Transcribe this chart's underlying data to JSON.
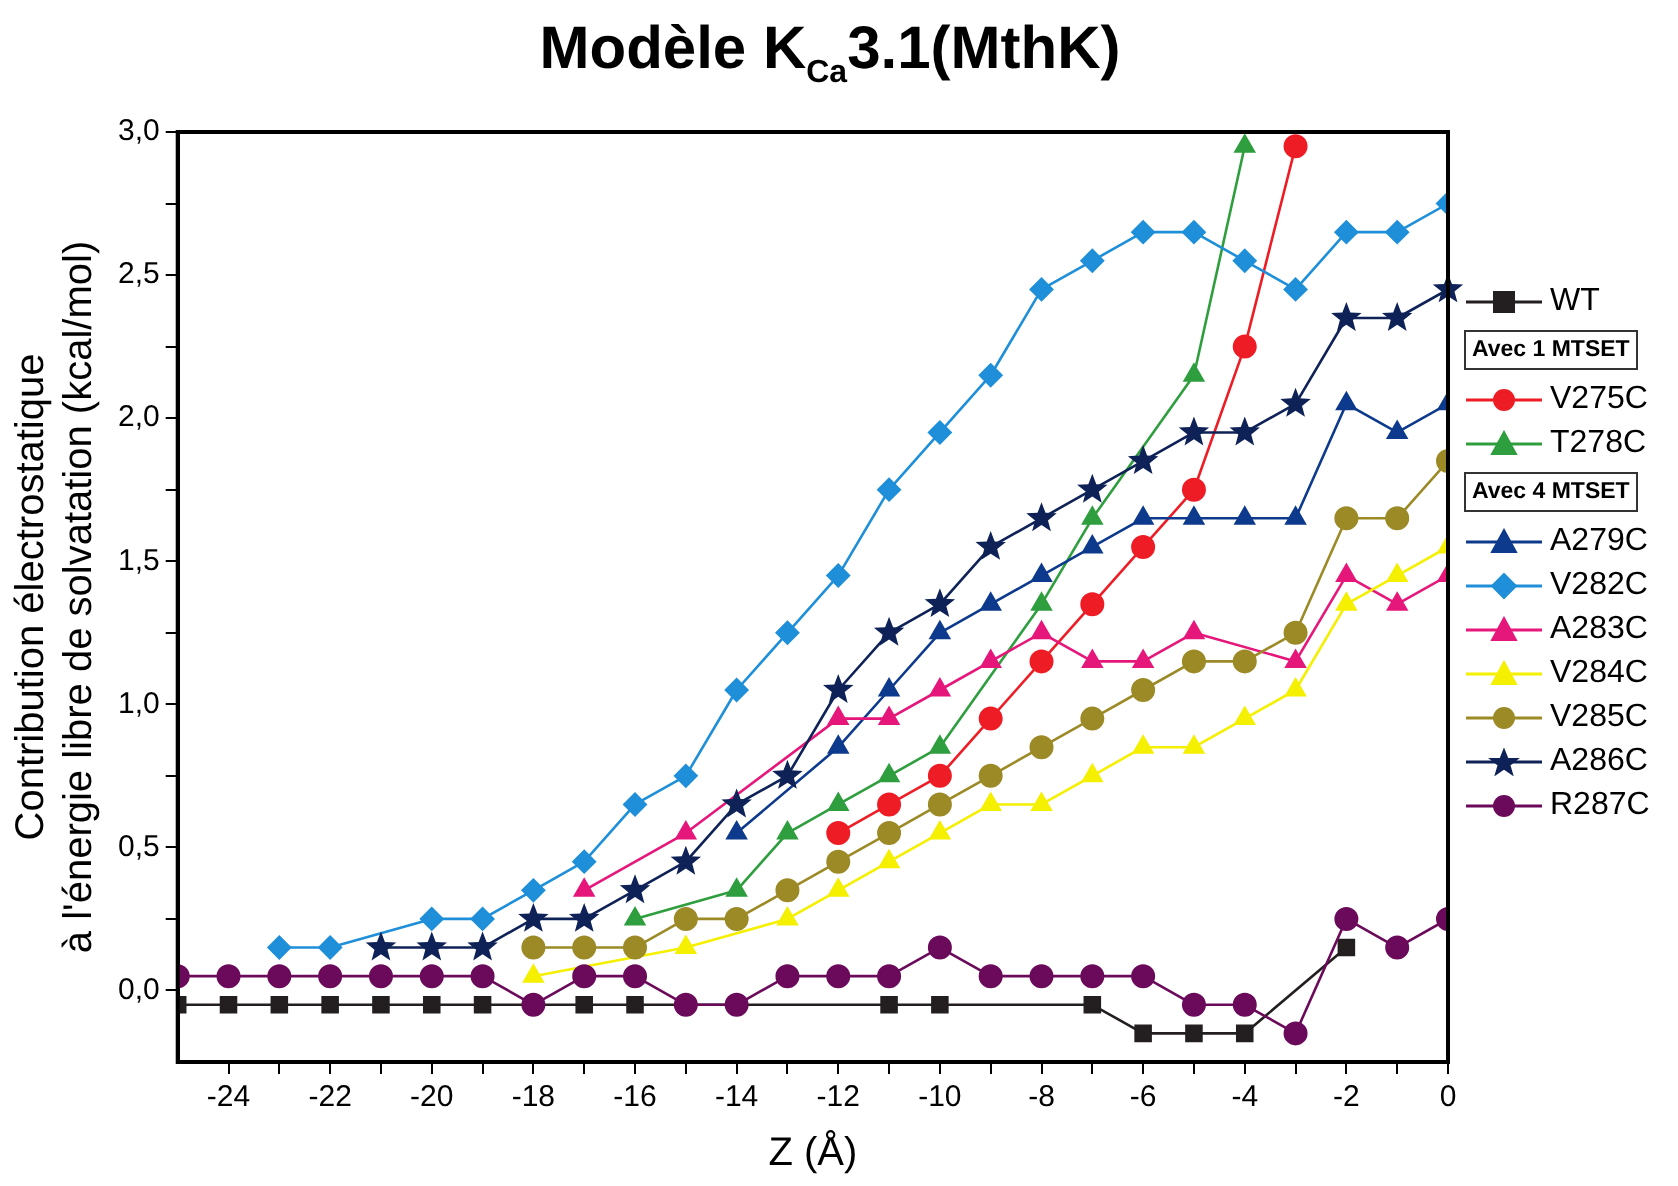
{
  "chart_data": {
    "type": "line",
    "title": "Modèle K$_{Ca}$3.1(MthK)",
    "xlabel": "Z (Å)",
    "ylabel": "Contribution électrostatique\nà l'énergie libre de solvatation (kcal/mol)",
    "x": [
      -25,
      -24,
      -23,
      -22,
      -21,
      -20,
      -19,
      -18,
      -17,
      -16,
      -15,
      -14,
      -13,
      -12,
      -11,
      -10,
      -9,
      -8,
      -7,
      -6,
      -5,
      -4,
      -3,
      -2,
      -1,
      0
    ],
    "series": [
      {
        "name": "WT",
        "color": "#231f20",
        "marker": "square",
        "values": [
          -0.05,
          -0.05,
          -0.05,
          -0.05,
          -0.05,
          -0.05,
          -0.05,
          null,
          -0.05,
          -0.05,
          null,
          null,
          null,
          null,
          -0.05,
          -0.05,
          null,
          null,
          -0.05,
          -0.15,
          -0.15,
          -0.15,
          null,
          0.15,
          null,
          null
        ]
      },
      {
        "name": "V275C",
        "color": "#ee1c25",
        "marker": "circle",
        "values": [
          null,
          null,
          null,
          null,
          null,
          null,
          null,
          null,
          null,
          null,
          null,
          null,
          null,
          0.55,
          0.65,
          0.75,
          0.95,
          1.15,
          1.35,
          1.55,
          1.75,
          2.25,
          2.95,
          null,
          null,
          null
        ]
      },
      {
        "name": "T278C",
        "color": "#2e9e3e",
        "marker": "triangle",
        "values": [
          null,
          null,
          null,
          null,
          null,
          null,
          null,
          null,
          null,
          0.25,
          null,
          0.35,
          0.55,
          0.65,
          0.75,
          0.85,
          null,
          1.35,
          1.65,
          null,
          2.15,
          2.95,
          null,
          null,
          null,
          null
        ]
      },
      {
        "name": "A279C",
        "color": "#0d3a8c",
        "marker": "triangle",
        "values": [
          null,
          null,
          null,
          null,
          null,
          null,
          null,
          null,
          null,
          null,
          null,
          0.55,
          null,
          0.85,
          1.05,
          1.25,
          1.35,
          1.45,
          1.55,
          1.65,
          1.65,
          1.65,
          1.65,
          2.05,
          1.95,
          2.05
        ]
      },
      {
        "name": "V282C",
        "color": "#1e8fd8",
        "marker": "diamond",
        "values": [
          null,
          null,
          0.15,
          0.15,
          null,
          0.25,
          0.25,
          0.35,
          0.45,
          0.65,
          0.75,
          1.05,
          1.25,
          1.45,
          1.75,
          1.95,
          2.15,
          2.45,
          2.55,
          2.65,
          2.65,
          2.55,
          2.45,
          2.65,
          2.65,
          2.75
        ]
      },
      {
        "name": "A283C",
        "color": "#e6177a",
        "marker": "triangle",
        "values": [
          null,
          null,
          null,
          null,
          null,
          null,
          null,
          null,
          0.35,
          null,
          0.55,
          null,
          null,
          0.95,
          0.95,
          1.05,
          1.15,
          1.25,
          1.15,
          1.15,
          1.25,
          null,
          1.15,
          1.45,
          1.35,
          1.45
        ]
      },
      {
        "name": "V284C",
        "color": "#f5ef00",
        "marker": "triangle",
        "values": [
          null,
          null,
          null,
          null,
          null,
          null,
          null,
          0.05,
          null,
          null,
          0.15,
          null,
          0.25,
          0.35,
          0.45,
          0.55,
          0.65,
          0.65,
          0.75,
          0.85,
          0.85,
          0.95,
          1.05,
          1.35,
          1.45,
          1.55
        ]
      },
      {
        "name": "V285C",
        "color": "#9b8a26",
        "marker": "circle",
        "values": [
          null,
          null,
          null,
          null,
          null,
          null,
          null,
          0.15,
          0.15,
          0.15,
          0.25,
          0.25,
          0.35,
          0.45,
          0.55,
          0.65,
          0.75,
          0.85,
          0.95,
          1.05,
          1.15,
          1.15,
          1.25,
          1.65,
          1.65,
          1.85
        ]
      },
      {
        "name": "A286C",
        "color": "#0f2257",
        "marker": "star",
        "values": [
          null,
          null,
          null,
          null,
          0.15,
          0.15,
          0.15,
          0.25,
          0.25,
          0.35,
          0.45,
          0.65,
          0.75,
          1.05,
          1.25,
          1.35,
          1.55,
          1.65,
          1.75,
          1.85,
          1.95,
          1.95,
          2.05,
          2.35,
          2.35,
          2.45
        ]
      },
      {
        "name": "R287C",
        "color": "#6b0a5a",
        "marker": "circle",
        "values": [
          0.05,
          0.05,
          0.05,
          0.05,
          0.05,
          0.05,
          0.05,
          -0.05,
          0.05,
          0.05,
          -0.05,
          -0.05,
          0.05,
          0.05,
          0.05,
          0.15,
          0.05,
          0.05,
          0.05,
          0.05,
          -0.05,
          -0.05,
          -0.15,
          0.25,
          0.15,
          0.25
        ]
      }
    ],
    "annotations": [
      "Avec 1 MTSET",
      "Avec 4 MTSET"
    ],
    "xlim": [
      -25,
      0
    ],
    "xticks": [
      -24,
      {
        "value": -23,
        "label": null
      },
      -22,
      {
        "value": -21,
        "label": null
      },
      -20,
      {
        "value": -19,
        "label": null
      },
      -18,
      {
        "value": -17,
        "label": null
      },
      -16,
      {
        "value": -15,
        "label": null
      },
      -14,
      {
        "value": -13,
        "label": null
      },
      -12,
      {
        "value": -11,
        "label": null
      },
      -10,
      {
        "value": -9,
        "label": null
      },
      -8,
      {
        "value": -7,
        "label": null
      },
      -6,
      {
        "value": -5,
        "label": null
      },
      -4,
      {
        "value": -3,
        "label": null
      },
      -2,
      {
        "value": -1,
        "label": null
      },
      0
    ],
    "ylim": [
      -0.25,
      3.0
    ],
    "yticks": [
      {
        "value": 0,
        "label": "0,0"
      },
      {
        "value": 0.25,
        "label": null
      },
      {
        "value": 0.5,
        "label": "0,5"
      },
      {
        "value": 0.75,
        "label": null
      },
      {
        "value": 1,
        "label": "1,0"
      },
      {
        "value": 1.25,
        "label": null
      },
      {
        "value": 1.5,
        "label": "1,5"
      },
      {
        "value": 1.75,
        "label": null
      },
      {
        "value": 2,
        "label": "2,0"
      },
      {
        "value": 2.25,
        "label": null
      },
      {
        "value": 2.5,
        "label": "2,5"
      },
      {
        "value": 2.75,
        "label": null
      },
      {
        "value": 3,
        "label": "3,0"
      }
    ],
    "grid": false,
    "legend": "right",
    "line_style": "solid"
  }
}
